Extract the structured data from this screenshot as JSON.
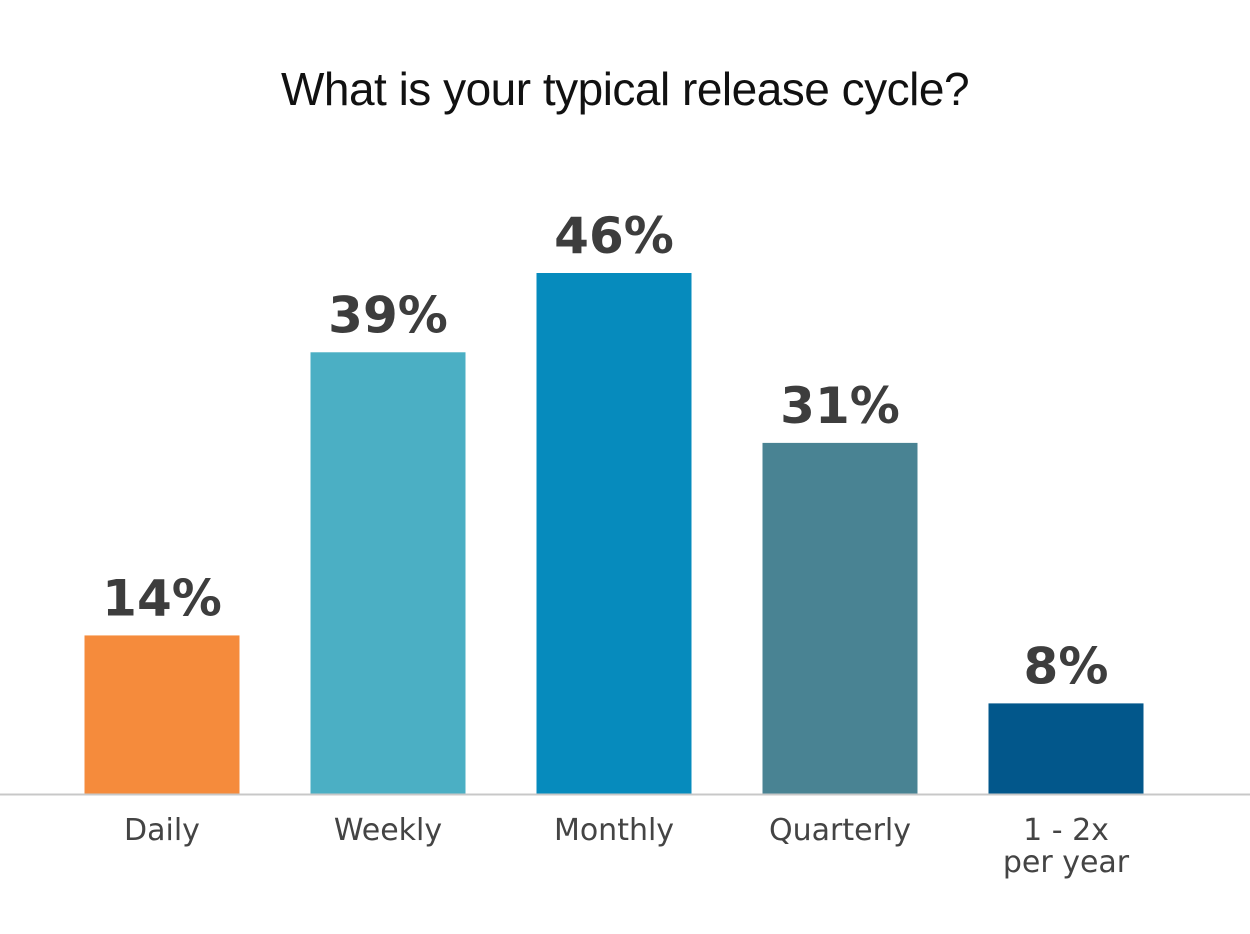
{
  "chart_data": {
    "type": "bar",
    "title": "What is your typical release cycle?",
    "categories": [
      [
        "Daily"
      ],
      [
        "Weekly"
      ],
      [
        "Monthly"
      ],
      [
        "Quarterly"
      ],
      [
        "1 - 2x",
        "per year"
      ]
    ],
    "values": [
      14,
      39,
      46,
      31,
      8
    ],
    "value_labels": [
      "14%",
      "39%",
      "46%",
      "31%",
      "8%"
    ],
    "colors": [
      "#f58b3c",
      "#4bafc4",
      "#068bbd",
      "#498393",
      "#02578b"
    ],
    "axis_color": "#c8c8c8",
    "ylim": [
      0,
      46
    ],
    "grid": false,
    "legend": "none"
  }
}
